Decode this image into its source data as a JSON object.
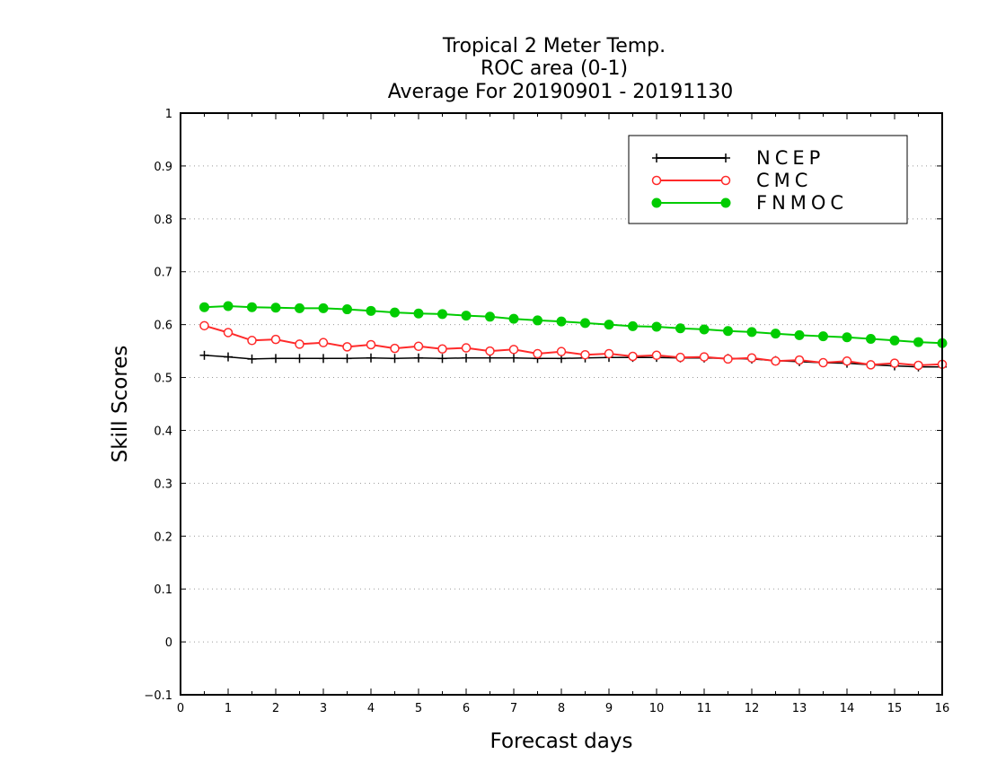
{
  "chart_data": {
    "type": "line",
    "title_lines": [
      "Tropical 2 Meter Temp.",
      "ROC area (0-1)",
      "Average For 20190901 - 20191130"
    ],
    "xlabel": "Forecast days",
    "ylabel": "Skill Scores",
    "xlim": [
      0,
      16
    ],
    "ylim": [
      -0.1,
      1
    ],
    "xticks": [
      "0",
      "1",
      "2",
      "3",
      "4",
      "5",
      "6",
      "7",
      "8",
      "9",
      "10",
      "11",
      "12",
      "13",
      "14",
      "15",
      "16"
    ],
    "yticks": [
      "−0.1",
      "0",
      "0.1",
      "0.2",
      "0.3",
      "0.4",
      "0.5",
      "0.6",
      "0.7",
      "0.8",
      "0.9",
      "1"
    ],
    "grid": "horizontal dotted",
    "legend_position": "top-right",
    "x": [
      0.5,
      1,
      1.5,
      2,
      2.5,
      3,
      3.5,
      4,
      4.5,
      5,
      5.5,
      6,
      6.5,
      7,
      7.5,
      8,
      8.5,
      9,
      9.5,
      10,
      10.5,
      11,
      11.5,
      12,
      12.5,
      13,
      13.5,
      14,
      14.5,
      15,
      15.5,
      16
    ],
    "series": [
      {
        "name": "NCEP",
        "color": "#000000",
        "marker": "plus",
        "values": [
          0.542,
          0.539,
          0.535,
          0.536,
          0.536,
          0.536,
          0.536,
          0.537,
          0.536,
          0.537,
          0.536,
          0.537,
          0.537,
          0.537,
          0.536,
          0.536,
          0.537,
          0.538,
          0.538,
          0.538,
          0.537,
          0.537,
          0.536,
          0.535,
          0.532,
          0.53,
          0.528,
          0.527,
          0.524,
          0.522,
          0.52,
          0.52
        ]
      },
      {
        "name": "CMC",
        "color": "#ff2a2a",
        "marker": "open-circle",
        "values": [
          0.598,
          0.585,
          0.57,
          0.572,
          0.563,
          0.566,
          0.558,
          0.562,
          0.555,
          0.559,
          0.554,
          0.556,
          0.55,
          0.553,
          0.545,
          0.549,
          0.543,
          0.545,
          0.54,
          0.542,
          0.538,
          0.539,
          0.535,
          0.537,
          0.531,
          0.533,
          0.528,
          0.531,
          0.524,
          0.527,
          0.523,
          0.525
        ]
      },
      {
        "name": "FNMOC",
        "color": "#00cc00",
        "marker": "filled-circle",
        "values": [
          0.633,
          0.635,
          0.633,
          0.632,
          0.631,
          0.631,
          0.629,
          0.626,
          0.623,
          0.621,
          0.62,
          0.617,
          0.615,
          0.611,
          0.608,
          0.606,
          0.603,
          0.6,
          0.597,
          0.596,
          0.593,
          0.591,
          0.588,
          0.586,
          0.583,
          0.58,
          0.578,
          0.576,
          0.573,
          0.57,
          0.567,
          0.565
        ]
      }
    ]
  }
}
